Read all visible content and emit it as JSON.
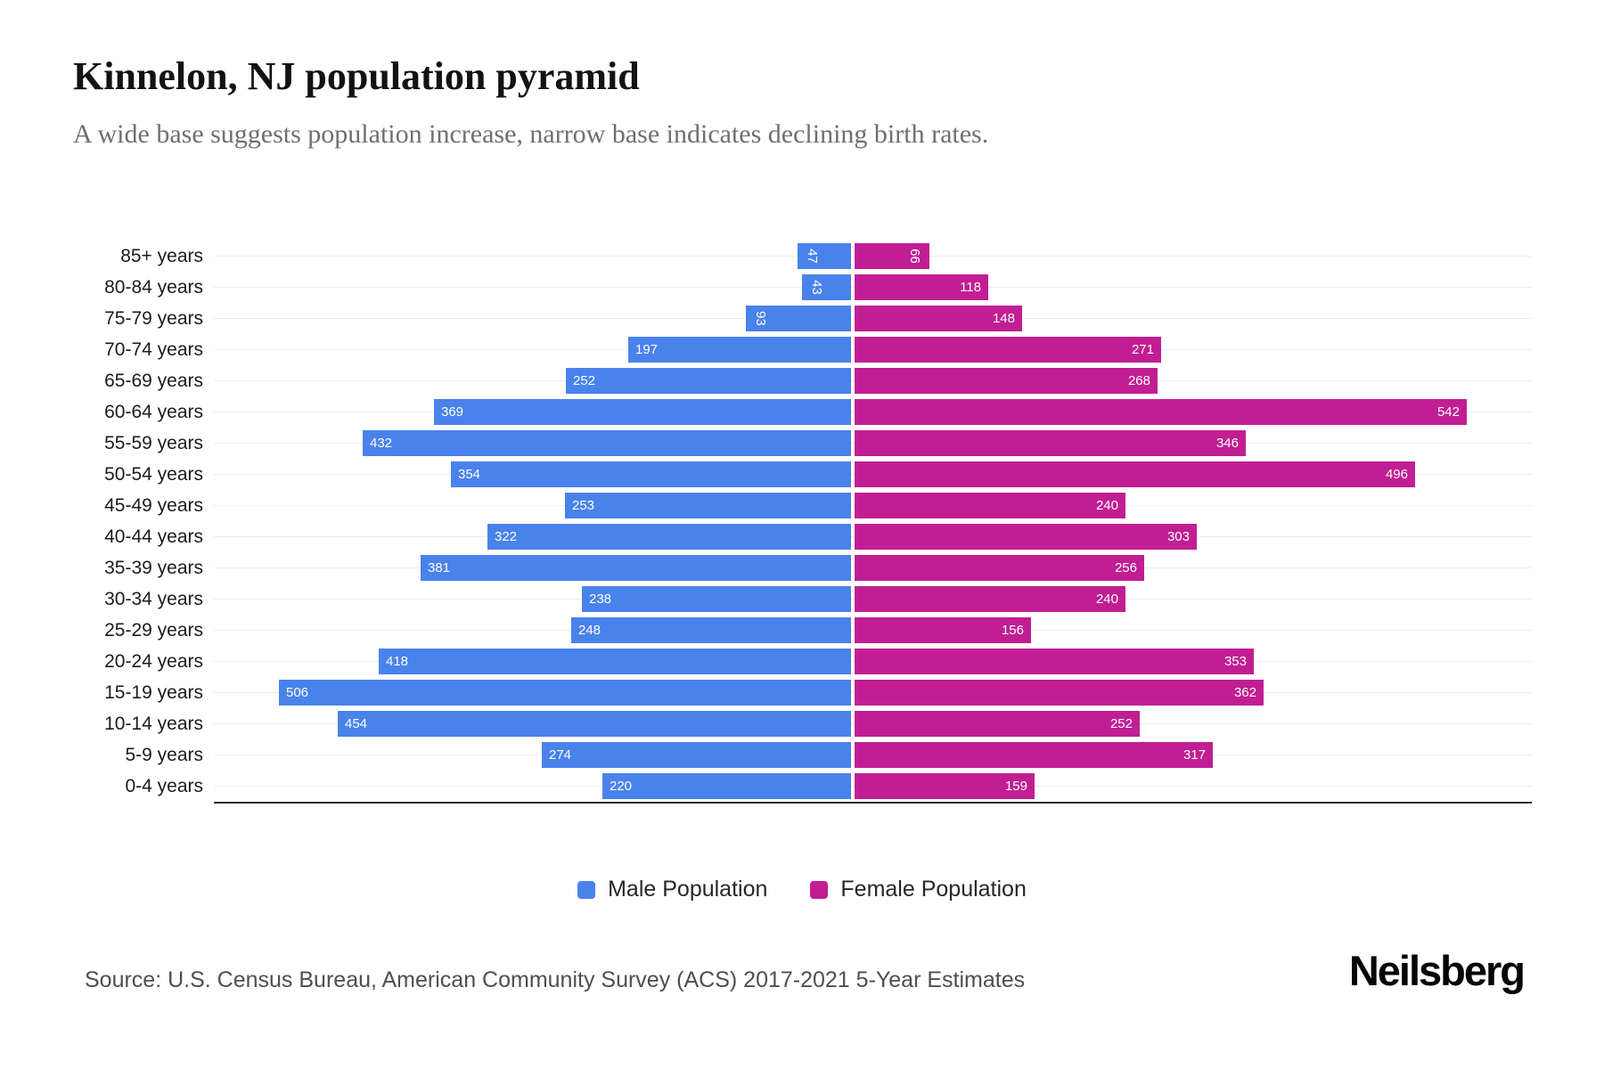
{
  "header": {
    "title": "Kinnelon, NJ population pyramid",
    "subtitle": "A wide base suggests population increase, narrow base indicates declining birth rates."
  },
  "chart_data": {
    "type": "bar",
    "variant": "population-pyramid",
    "title": "Kinnelon, NJ population pyramid",
    "subtitle": "A wide base suggests population increase, narrow base indicates declining birth rates.",
    "categories": [
      "85+ years",
      "80-84 years",
      "75-79 years",
      "70-74 years",
      "65-69 years",
      "60-64 years",
      "55-59 years",
      "50-54 years",
      "45-49 years",
      "40-44 years",
      "35-39 years",
      "30-34 years",
      "25-29 years",
      "20-24 years",
      "15-19 years",
      "10-14 years",
      "5-9 years",
      "0-4 years"
    ],
    "series": [
      {
        "name": "Male Population",
        "color": "#4A82EC",
        "side": "left",
        "values": [
          47,
          43,
          93,
          197,
          252,
          369,
          432,
          354,
          253,
          322,
          381,
          238,
          248,
          418,
          506,
          454,
          274,
          220
        ]
      },
      {
        "name": "Female Population",
        "color": "#C11E93",
        "side": "right",
        "values": [
          66,
          118,
          148,
          271,
          268,
          542,
          346,
          496,
          240,
          303,
          256,
          240,
          156,
          353,
          362,
          252,
          317,
          159
        ]
      }
    ],
    "value_labels": "inside-outer-end, white, rotated 90deg when value < 100",
    "axis_value_max_per_side": 565,
    "grid": true,
    "legend_position": "bottom-center"
  },
  "legend": {
    "items": [
      {
        "label": "Male Population",
        "color": "#4A82EC"
      },
      {
        "label": "Female Population",
        "color": "#C11E93"
      }
    ]
  },
  "footer": {
    "source": "Source: U.S. Census Bureau, American Community Survey (ACS) 2017-2021 5-Year Estimates",
    "brand": "Neilsberg"
  }
}
